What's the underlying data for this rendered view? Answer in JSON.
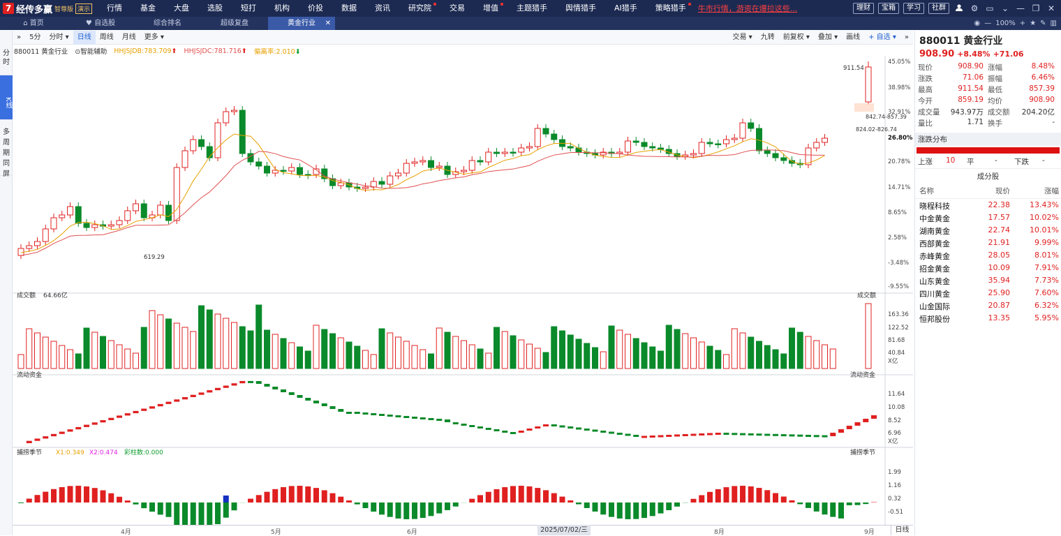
{
  "app": {
    "logo_mark": "7",
    "name": "经传多赢",
    "edition": "智尊版",
    "demo": "演示"
  },
  "nav": [
    "行情",
    "基金",
    "大盘",
    "选股",
    "短打",
    "机构",
    "价投",
    "数据",
    "资讯",
    "研究院",
    "交易",
    "增值",
    "主题猎手",
    "舆情猎手",
    "AI猎手",
    "策略猎手"
  ],
  "nav_hot": [
    "研究院",
    "增值",
    "策略猎手"
  ],
  "ticker_text": "牛市行情，游资在爆拉这些...",
  "top_buttons": [
    "理财",
    "宝箱",
    "学习",
    "社群"
  ],
  "tabs": [
    {
      "label": "首页",
      "icon": "home-icon"
    },
    {
      "label": "自选股",
      "icon": "heart-icon"
    },
    {
      "label": "综合排名"
    },
    {
      "label": "超级复盘"
    },
    {
      "label": "黄金行业",
      "active": true
    }
  ],
  "zoom": "100%",
  "left_rail": [
    {
      "label": "分时"
    },
    {
      "label": "K线",
      "active": true
    },
    {
      "label": "多周期同屏"
    }
  ],
  "toolbar": {
    "periods": [
      "5分",
      "分时",
      "日线",
      "周线",
      "月线",
      "更多"
    ],
    "active_period": "日线",
    "right_items": [
      "交易",
      "九转",
      "前复权",
      "叠加",
      "画线",
      "+ 自选"
    ]
  },
  "legend": {
    "code_name": "880011 黄金行业",
    "assist": "智能辅助",
    "hhjsjdb": "HHJSJDB:783.709",
    "hhjsjdc": "HHJSJDC:781.716",
    "deviation": "偏离率:2.010"
  },
  "price_axis": [
    "45.05%",
    "38.98%",
    "32.91%",
    "26.80%",
    "20.78%",
    "14.71%",
    "8.65%",
    "2.58%",
    "-3.48%",
    "-9.55%"
  ],
  "price_labels": {
    "high": "911.54",
    "low": "619.29",
    "range1": "842.74-857.39",
    "range2": "824.02-826.74"
  },
  "panels": {
    "volume": {
      "title": "成交额",
      "value": "64.66亿",
      "axis": [
        "163.36",
        "122.52",
        "81.68",
        "40.84",
        "X亿"
      ]
    },
    "flow": {
      "title": "流动资金",
      "axis": [
        "11.64",
        "10.08",
        "8.52",
        "6.96",
        "X亿"
      ]
    },
    "capture": {
      "title": "捕捞季节",
      "x1": "X1:0.349",
      "x2": "X2:0.474",
      "bars": "彩柱数:0.000",
      "axis": [
        "1.99",
        "1.16",
        "0.32",
        "-0.51"
      ]
    }
  },
  "chart_data": {
    "type": "candlestick",
    "period": "daily",
    "x_labels": [
      "4月",
      "5月",
      "6月",
      "7月",
      "8月",
      "9月"
    ],
    "cursor_date": "2025/07/02/三",
    "high": 911.54,
    "low": 619.29,
    "last": {
      "close": 908.9,
      "change": 71.06,
      "pct": 8.48
    }
  },
  "bottom": {
    "mode": "日线"
  },
  "quote": {
    "code": "880011",
    "name": "黄金行业",
    "price": "908.90",
    "pct": "+8.48%",
    "chg": "+71.06",
    "rows": [
      [
        "现价",
        "908.90",
        "涨幅",
        "8.48%"
      ],
      [
        "涨跌",
        "71.06",
        "振幅",
        "6.46%"
      ],
      [
        "最高",
        "911.54",
        "最低",
        "857.39"
      ],
      [
        "今开",
        "859.19",
        "均价",
        "908.90"
      ],
      [
        "成交量",
        "943.97万",
        "成交额",
        "204.20亿"
      ],
      [
        "量比",
        "1.71",
        "换手",
        "-"
      ]
    ]
  },
  "dist": {
    "title": "涨跌分布",
    "up_label": "上涨",
    "up": "10",
    "flat_label": "平",
    "flat": "-",
    "down_label": "下跌",
    "down": "-"
  },
  "components": {
    "title": "成分股",
    "headers": [
      "名称",
      "现价",
      "涨幅"
    ],
    "rows": [
      [
        "晓程科技",
        "22.38",
        "13.43%"
      ],
      [
        "中金黄金",
        "17.57",
        "10.02%"
      ],
      [
        "湖南黄金",
        "22.74",
        "10.01%"
      ],
      [
        "西部黄金",
        "21.91",
        "9.99%"
      ],
      [
        "赤峰黄金",
        "28.05",
        "8.01%"
      ],
      [
        "招金黄金",
        "10.09",
        "7.91%"
      ],
      [
        "山东黄金",
        "35.94",
        "7.73%"
      ],
      [
        "四川黄金",
        "25.90",
        "7.60%"
      ],
      [
        "山金国际",
        "20.87",
        "6.32%"
      ],
      [
        "恒邦股份",
        "13.35",
        "5.95%"
      ]
    ]
  }
}
